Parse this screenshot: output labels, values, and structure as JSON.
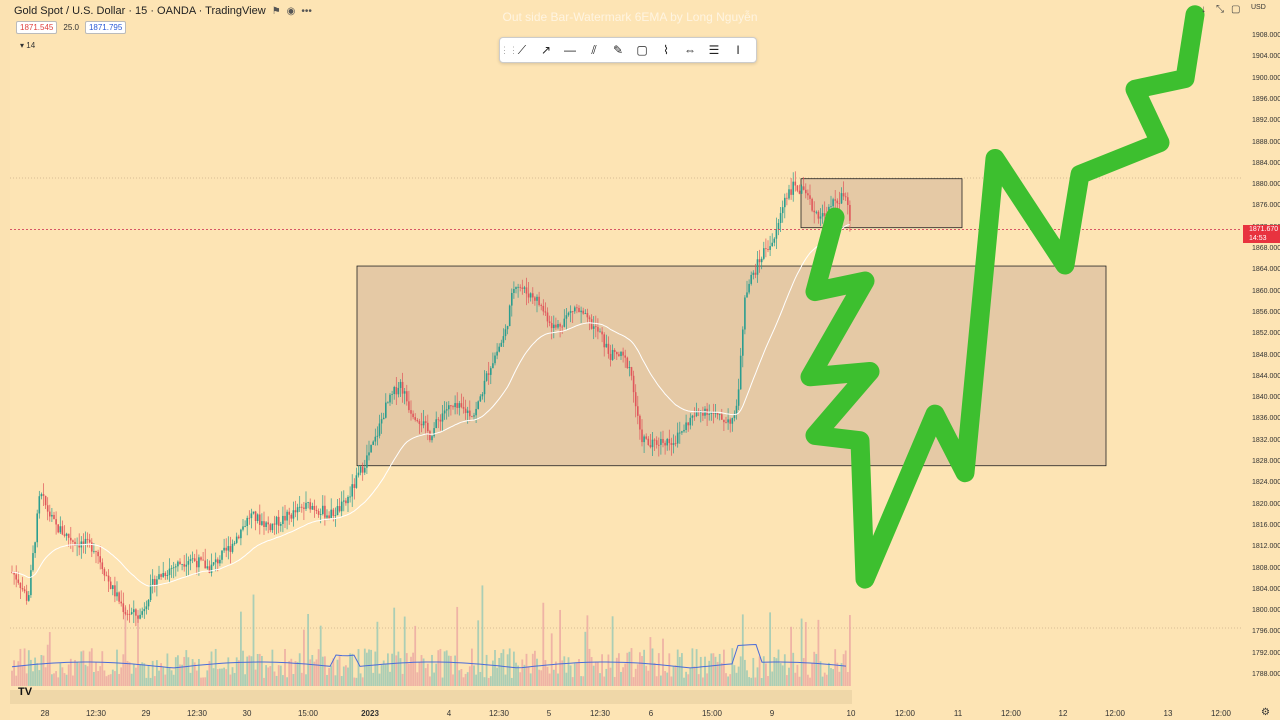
{
  "header": {
    "symbol": "Gold Spot / U.S. Dollar · 15 · OANDA · TradingView",
    "bid": "1871.545",
    "spread": "25.0",
    "ask": "1871.795",
    "indicator_count": "14",
    "watermark": "Out side Bar-Watermark 6EMA by Long Nguyễn"
  },
  "toolbar_icons": [
    "grip-icon",
    "trendline-icon",
    "ray-icon",
    "horizontal-line-icon",
    "channel-icon",
    "brush-icon",
    "rectangle-icon",
    "path-icon",
    "range-icon",
    "measure-icon",
    "text-cursor-icon"
  ],
  "currency": "USD",
  "current_price": {
    "value": "1871.670",
    "countdown": "14:53",
    "color": "#e8333f"
  },
  "colors": {
    "background": "#fde4b4",
    "box_fill": "#dcc0a0",
    "box_stroke": "#222222",
    "projection": "#3dbf2f",
    "ema": "#ffffff",
    "volume_ma": "#4a6bd8"
  },
  "chart_data": {
    "type": "candlestick",
    "title": "Gold Spot / U.S. Dollar · 15 · OANDA · TradingView",
    "y_ticks": [
      "1908.000",
      "1904.000",
      "1900.000",
      "1896.000",
      "1892.000",
      "1888.000",
      "1884.000",
      "1880.000",
      "1876.000",
      "1872.000",
      "1868.000",
      "1864.000",
      "1860.000",
      "1856.000",
      "1852.000",
      "1848.000",
      "1844.000",
      "1840.000",
      "1836.000",
      "1832.000",
      "1828.000",
      "1824.000",
      "1820.000",
      "1816.000",
      "1812.000",
      "1808.000",
      "1804.000",
      "1800.000",
      "1796.000",
      "1792.000",
      "1788.000"
    ],
    "x_ticks": [
      {
        "label": "28",
        "bold": false
      },
      {
        "label": "12:30",
        "bold": false
      },
      {
        "label": "29",
        "bold": false
      },
      {
        "label": "12:30",
        "bold": false
      },
      {
        "label": "30",
        "bold": false
      },
      {
        "label": "15:00",
        "bold": false
      },
      {
        "label": "2023",
        "bold": true
      },
      {
        "label": "4",
        "bold": false
      },
      {
        "label": "12:30",
        "bold": false
      },
      {
        "label": "5",
        "bold": false
      },
      {
        "label": "12:30",
        "bold": false
      },
      {
        "label": "6",
        "bold": false
      },
      {
        "label": "15:00",
        "bold": false
      },
      {
        "label": "9",
        "bold": false
      },
      {
        "label": "10",
        "bold": false
      },
      {
        "label": "12:00",
        "bold": false
      },
      {
        "label": "11",
        "bold": false
      },
      {
        "label": "12:00",
        "bold": false
      },
      {
        "label": "12",
        "bold": false
      },
      {
        "label": "12:00",
        "bold": false
      },
      {
        "label": "13",
        "bold": false
      },
      {
        "label": "12:00",
        "bold": false
      }
    ],
    "ylim": [
      1785,
      1912
    ],
    "price_path": [
      [
        0,
        1810
      ],
      [
        18,
        1806
      ],
      [
        28,
        1802
      ],
      [
        40,
        1822
      ],
      [
        55,
        1816
      ],
      [
        75,
        1813
      ],
      [
        95,
        1812
      ],
      [
        110,
        1805
      ],
      [
        125,
        1800
      ],
      [
        140,
        1799
      ],
      [
        155,
        1806
      ],
      [
        170,
        1808
      ],
      [
        190,
        1810
      ],
      [
        210,
        1808
      ],
      [
        230,
        1812
      ],
      [
        250,
        1818
      ],
      [
        270,
        1816
      ],
      [
        290,
        1818
      ],
      [
        310,
        1820
      ],
      [
        330,
        1818
      ],
      [
        345,
        1820
      ],
      [
        360,
        1826
      ],
      [
        375,
        1832
      ],
      [
        385,
        1838
      ],
      [
        400,
        1843
      ],
      [
        410,
        1838
      ],
      [
        420,
        1836
      ],
      [
        430,
        1833
      ],
      [
        445,
        1838
      ],
      [
        460,
        1838
      ],
      [
        475,
        1837
      ],
      [
        490,
        1846
      ],
      [
        505,
        1852
      ],
      [
        515,
        1862
      ],
      [
        525,
        1860
      ],
      [
        535,
        1859
      ],
      [
        545,
        1856
      ],
      [
        555,
        1853
      ],
      [
        565,
        1855
      ],
      [
        575,
        1857
      ],
      [
        585,
        1855
      ],
      [
        600,
        1852
      ],
      [
        610,
        1848
      ],
      [
        620,
        1848
      ],
      [
        630,
        1846
      ],
      [
        640,
        1833
      ],
      [
        650,
        1831
      ],
      [
        660,
        1832
      ],
      [
        675,
        1832
      ],
      [
        690,
        1836
      ],
      [
        705,
        1838
      ],
      [
        720,
        1836
      ],
      [
        735,
        1836
      ],
      [
        740,
        1845
      ],
      [
        745,
        1860
      ],
      [
        755,
        1864
      ],
      [
        765,
        1868
      ],
      [
        775,
        1870
      ],
      [
        785,
        1878
      ],
      [
        795,
        1880
      ],
      [
        805,
        1878
      ],
      [
        815,
        1875
      ],
      [
        825,
        1874
      ],
      [
        835,
        1877
      ],
      [
        845,
        1878
      ],
      [
        851,
        1872
      ]
    ],
    "support_resistance_zones": [
      {
        "y_top": 1864.8,
        "y_bottom": 1827.3
      },
      {
        "y_top": 1881.2,
        "y_bottom": 1872.0
      }
    ],
    "current_price": 1871.67,
    "projection_path": [
      [
        835,
        1874
      ],
      [
        815,
        1860
      ],
      [
        865,
        1862
      ],
      [
        810,
        1844
      ],
      [
        870,
        1845
      ],
      [
        815,
        1833
      ],
      [
        860,
        1832
      ],
      [
        865,
        1806
      ],
      [
        935,
        1837
      ],
      [
        965,
        1826
      ],
      [
        995,
        1885
      ],
      [
        1065,
        1865
      ],
      [
        1080,
        1882
      ],
      [
        1160,
        1888
      ],
      [
        1135,
        1898
      ],
      [
        1185,
        1900
      ],
      [
        1195,
        1912
      ]
    ]
  }
}
